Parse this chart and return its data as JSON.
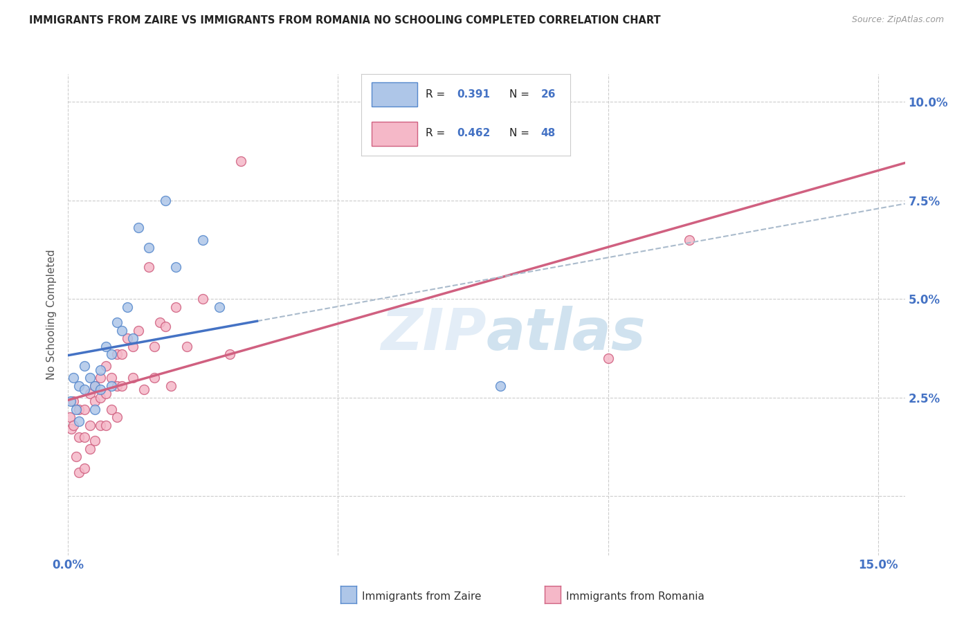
{
  "title": "IMMIGRANTS FROM ZAIRE VS IMMIGRANTS FROM ROMANIA NO SCHOOLING COMPLETED CORRELATION CHART",
  "source": "Source: ZipAtlas.com",
  "ylabel": "No Schooling Completed",
  "x_min": 0.0,
  "x_max": 0.155,
  "y_min": -0.015,
  "y_max": 0.107,
  "background_color": "#ffffff",
  "watermark": "ZIPatlas",
  "zaire_face_color": "#aec6e8",
  "zaire_edge_color": "#5588cc",
  "romania_face_color": "#f5b8c8",
  "romania_edge_color": "#d06080",
  "zaire_line_color": "#4472c4",
  "romania_line_color": "#d06080",
  "zaire_dash_color": "#aabbcc",
  "grid_color": "#cccccc",
  "tick_color": "#4472c4",
  "label_color": "#555555",
  "zaire_R": "0.391",
  "zaire_N": "26",
  "romania_R": "0.462",
  "romania_N": "48",
  "zaire_x": [
    0.0005,
    0.001,
    0.0015,
    0.002,
    0.002,
    0.003,
    0.003,
    0.004,
    0.005,
    0.005,
    0.006,
    0.006,
    0.007,
    0.008,
    0.008,
    0.009,
    0.01,
    0.011,
    0.012,
    0.013,
    0.015,
    0.018,
    0.02,
    0.025,
    0.028,
    0.08
  ],
  "zaire_y": [
    0.024,
    0.03,
    0.022,
    0.028,
    0.019,
    0.033,
    0.027,
    0.03,
    0.028,
    0.022,
    0.032,
    0.027,
    0.038,
    0.036,
    0.028,
    0.044,
    0.042,
    0.048,
    0.04,
    0.068,
    0.063,
    0.075,
    0.058,
    0.065,
    0.048,
    0.028
  ],
  "romania_x": [
    0.0003,
    0.0006,
    0.001,
    0.001,
    0.0015,
    0.002,
    0.002,
    0.002,
    0.003,
    0.003,
    0.003,
    0.004,
    0.004,
    0.004,
    0.005,
    0.005,
    0.005,
    0.006,
    0.006,
    0.006,
    0.007,
    0.007,
    0.007,
    0.008,
    0.008,
    0.009,
    0.009,
    0.009,
    0.01,
    0.01,
    0.011,
    0.012,
    0.012,
    0.013,
    0.014,
    0.015,
    0.016,
    0.016,
    0.017,
    0.018,
    0.019,
    0.02,
    0.022,
    0.025,
    0.03,
    0.032,
    0.1,
    0.115
  ],
  "romania_y": [
    0.02,
    0.017,
    0.024,
    0.018,
    0.01,
    0.022,
    0.015,
    0.006,
    0.022,
    0.015,
    0.007,
    0.026,
    0.018,
    0.012,
    0.028,
    0.024,
    0.014,
    0.03,
    0.025,
    0.018,
    0.033,
    0.026,
    0.018,
    0.03,
    0.022,
    0.036,
    0.028,
    0.02,
    0.036,
    0.028,
    0.04,
    0.038,
    0.03,
    0.042,
    0.027,
    0.058,
    0.038,
    0.03,
    0.044,
    0.043,
    0.028,
    0.048,
    0.038,
    0.05,
    0.036,
    0.085,
    0.035,
    0.065
  ]
}
